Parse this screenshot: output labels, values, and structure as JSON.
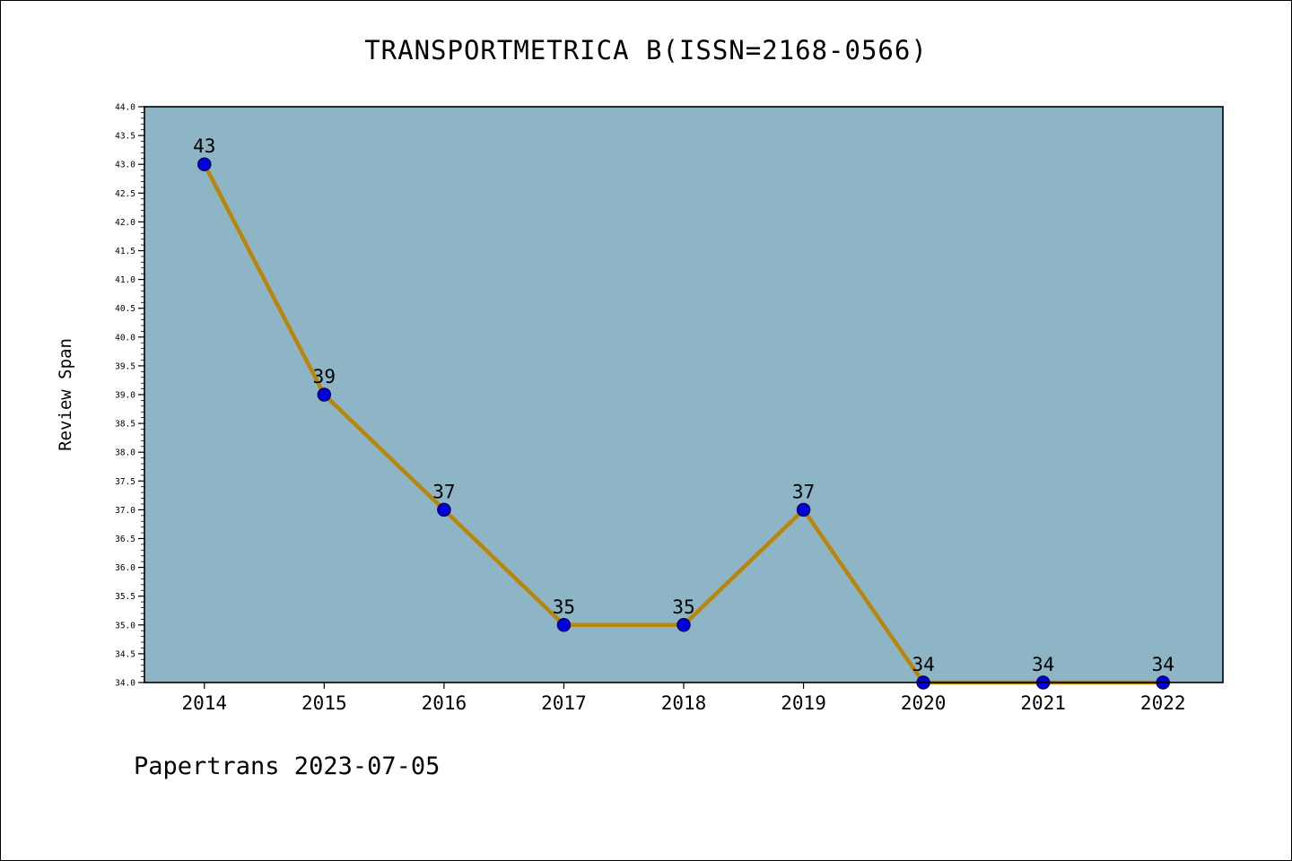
{
  "figure": {
    "title": "TRANSPORTMETRICA B(ISSN=2168-0566)",
    "footer": "Papertrans 2023-07-05"
  },
  "chart_data": {
    "type": "line",
    "title": "TRANSPORTMETRICA B(ISSN=2168-0566)",
    "categories": [
      "2014",
      "2015",
      "2016",
      "2017",
      "2018",
      "2019",
      "2020",
      "2021",
      "2022"
    ],
    "values": [
      43,
      39,
      37,
      35,
      35,
      37,
      34,
      34,
      34
    ],
    "annotations": [
      "43",
      "39",
      "37",
      "35",
      "35",
      "37",
      "34",
      "34",
      "34"
    ],
    "xlabel": "",
    "ylabel": "Review Span",
    "ylim": [
      34.0,
      44.0
    ],
    "ytick_step": 0.5,
    "ytick_minor_step": 0.1,
    "grid": false,
    "legend": "none",
    "colors": {
      "line": "#b8860b",
      "marker_fill": "#0000dd",
      "marker_edge": "#00006a",
      "plot_background": "#8db5c5",
      "figure_background": "#ffffff",
      "axis": "#000000",
      "text": "#000000"
    }
  }
}
